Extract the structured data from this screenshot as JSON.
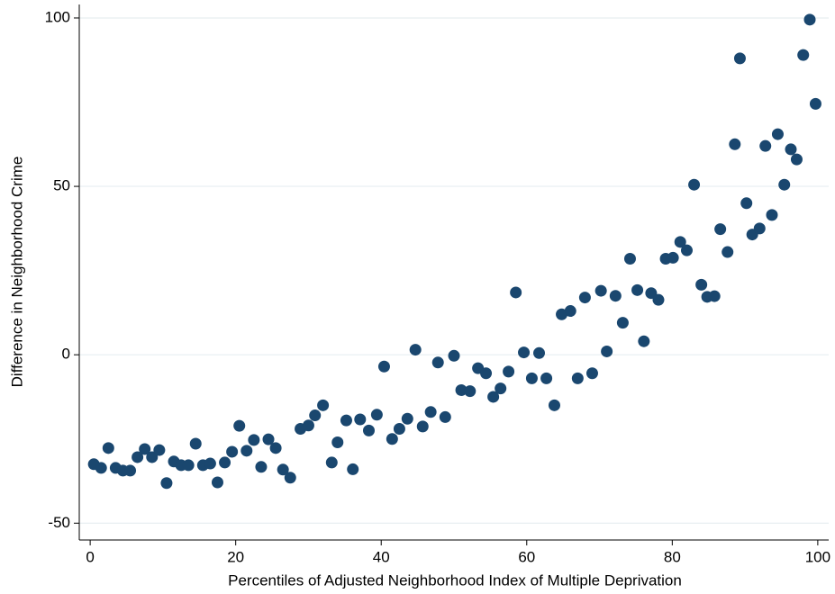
{
  "chart_data": {
    "type": "scatter",
    "x_label": "Percentiles of Adjusted Neighborhood Index of Multiple Deprivation",
    "y_label": "Difference in Neighborhood Crime",
    "color": "#1a476f",
    "grid": true,
    "xlim": [
      -1.5,
      101.5
    ],
    "ylim": [
      -55,
      104
    ],
    "xticks": [
      0,
      20,
      40,
      60,
      80,
      100
    ],
    "yticks": [
      -50,
      0,
      50,
      100
    ],
    "x": [
      0.5,
      1.5,
      2.5,
      3.5,
      4.5,
      5.5,
      6.5,
      7.5,
      8.5,
      9.5,
      10.5,
      11.5,
      12.5,
      13.5,
      14.5,
      15.5,
      16.5,
      17.5,
      18.5,
      19.5,
      20.5,
      21.5,
      22.5,
      23.5,
      24.5,
      25.5,
      26.5,
      27.5,
      28.9,
      30,
      30.9,
      32,
      33.2,
      34,
      35.2,
      36.1,
      37.1,
      38.3,
      39.4,
      40.4,
      41.5,
      42.5,
      43.6,
      44.7,
      45.7,
      46.8,
      47.8,
      48.8,
      50,
      51,
      52.2,
      53.3,
      54.4,
      55.4,
      56.4,
      57.5,
      58.5,
      59.6,
      60.7,
      61.7,
      62.7,
      63.8,
      64.8,
      66,
      67,
      68,
      69,
      70.2,
      71,
      72.2,
      73.2,
      74.2,
      75.2,
      76.1,
      77.1,
      78.1,
      79.1,
      80.1,
      81.1,
      82,
      83,
      84,
      84.8,
      85.8,
      86.6,
      87.6,
      88.6,
      89.3,
      90.2,
      91,
      92,
      92.8,
      93.7,
      94.5,
      95.4,
      96.3,
      97.1,
      98,
      98.9,
      99.7
    ],
    "values": [
      -32.5,
      -33.6,
      -27.7,
      -33.6,
      -34.4,
      -34.4,
      -30.4,
      -28,
      -30.4,
      -28.3,
      -38.1,
      -31.7,
      -32.8,
      -32.8,
      -26.4,
      -32.8,
      -32.3,
      -37.9,
      -32,
      -28.8,
      -21.1,
      -28.5,
      -25.3,
      -33.3,
      -25.1,
      -27.7,
      -34.1,
      -36.5,
      -22,
      -21,
      -18,
      -15,
      -32,
      -26,
      -19.5,
      -34,
      -19.2,
      -22.5,
      -17.8,
      -3.5,
      -25,
      -22,
      -19,
      1.5,
      -21.3,
      -17,
      -2.3,
      -18.5,
      -0.3,
      -10.5,
      -10.8,
      -4,
      -5.5,
      -12.5,
      -10,
      -5,
      18.5,
      0.7,
      -7,
      0.5,
      -7,
      -15,
      12,
      13,
      -7,
      17,
      -5.5,
      19,
      1,
      17.5,
      9.5,
      28.5,
      19.2,
      4,
      18.3,
      16.3,
      28.5,
      28.8,
      33.5,
      31,
      50.5,
      20.8,
      17.2,
      17.4,
      37.3,
      30.5,
      62.5,
      88,
      45,
      35.7,
      37.5,
      62,
      41.5,
      65.5,
      50.5,
      61,
      58,
      89,
      99.5,
      74.5
    ]
  }
}
